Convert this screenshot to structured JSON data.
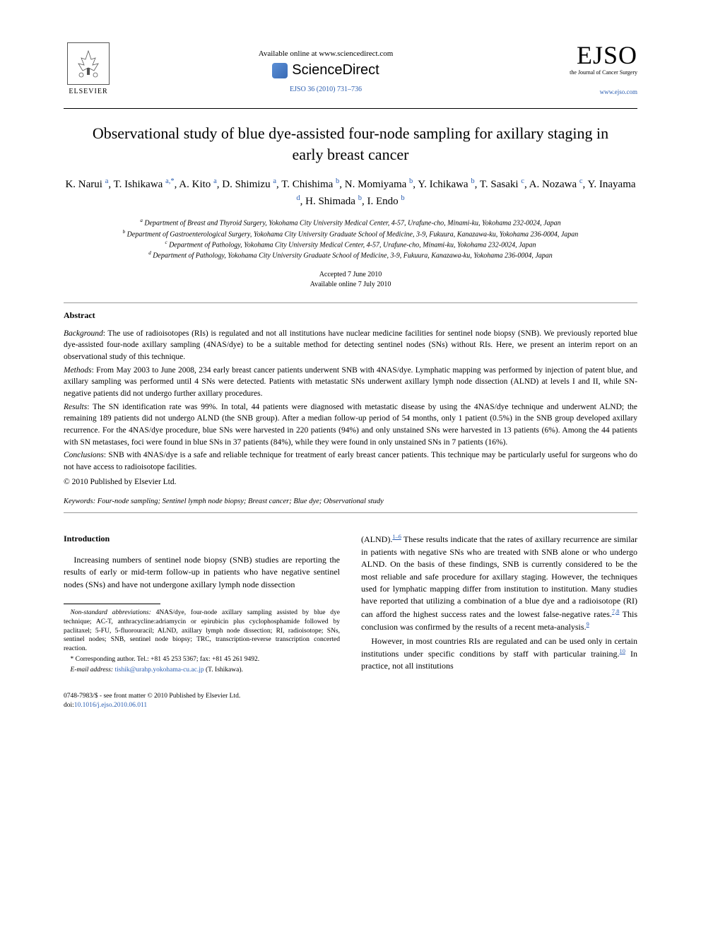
{
  "header": {
    "elsevier_label": "ELSEVIER",
    "available_online": "Available online at www.sciencedirect.com",
    "sciencedirect": "ScienceDirect",
    "citation": "EJSO 36 (2010) 731–736",
    "ejso": "EJSO",
    "ejso_sub": "the Journal of Cancer Surgery",
    "ejso_url": "www.ejso.com"
  },
  "title": "Observational study of blue dye-assisted four-node sampling for axillary staging in early breast cancer",
  "authors_html": "K. Narui <sup>a</sup>, T. Ishikawa <sup>a,*</sup>, A. Kito <sup>a</sup>, D. Shimizu <sup>a</sup>, T. Chishima <sup>b</sup>, N. Momiyama <sup>b</sup>, Y. Ichikawa <sup>b</sup>, T. Sasaki <sup>c</sup>, A. Nozawa <sup>c</sup>, Y. Inayama <sup>d</sup>, H. Shimada <sup>b</sup>, I. Endo <sup>b</sup>",
  "affiliations": {
    "a": "Department of Breast and Thyroid Surgery, Yokohama City University Medical Center, 4-57, Urafune-cho, Minami-ku, Yokohama 232-0024, Japan",
    "b": "Department of Gastroenterological Surgery, Yokohama City University Graduate School of Medicine, 3-9, Fukuura, Kanazawa-ku, Yokohama 236-0004, Japan",
    "c": "Department of Pathology, Yokohama City University Medical Center, 4-57, Urafune-cho, Minami-ku, Yokohama 232-0024, Japan",
    "d": "Department of Pathology, Yokohama City University Graduate School of Medicine, 3-9, Fukuura, Kanazawa-ku, Yokohama 236-0004, Japan"
  },
  "dates": {
    "accepted": "Accepted 7 June 2010",
    "online": "Available online 7 July 2010"
  },
  "abstract": {
    "label": "Abstract",
    "background": "Background: The use of radioisotopes (RIs) is regulated and not all institutions have nuclear medicine facilities for sentinel node biopsy (SNB). We previously reported blue dye-assisted four-node axillary sampling (4NAS/dye) to be a suitable method for detecting sentinel nodes (SNs) without RIs. Here, we present an interim report on an observational study of this technique.",
    "methods": "Methods: From May 2003 to June 2008, 234 early breast cancer patients underwent SNB with 4NAS/dye. Lymphatic mapping was performed by injection of patent blue, and axillary sampling was performed until 4 SNs were detected. Patients with metastatic SNs underwent axillary lymph node dissection (ALND) at levels I and II, while SN-negative patients did not undergo further axillary procedures.",
    "results": "Results: The SN identification rate was 99%. In total, 44 patients were diagnosed with metastatic disease by using the 4NAS/dye technique and underwent ALND; the remaining 189 patients did not undergo ALND (the SNB group). After a median follow-up period of 54 months, only 1 patient (0.5%) in the SNB group developed axillary recurrence. For the 4NAS/dye procedure, blue SNs were harvested in 220 patients (94%) and only unstained SNs were harvested in 13 patients (6%). Among the 44 patients with SN metastases, foci were found in blue SNs in 37 patients (84%), while they were found in only unstained SNs in 7 patients (16%).",
    "conclusions": "Conclusions: SNB with 4NAS/dye is a safe and reliable technique for treatment of early breast cancer patients. This technique may be particularly useful for surgeons who do not have access to radioisotope facilities.",
    "copyright": "© 2010 Published by Elsevier Ltd."
  },
  "keywords": {
    "label": "Keywords:",
    "text": "Four-node sampling; Sentinel lymph node biopsy; Breast cancer; Blue dye; Observational study"
  },
  "intro": {
    "heading": "Introduction",
    "p1": "Increasing numbers of sentinel node biopsy (SNB) studies are reporting the results of early or mid-term follow-up in patients who have negative sentinel nodes (SNs) and have not undergone axillary lymph node dissection",
    "p2a": "(ALND).",
    "p2ref": "1–6",
    "p2b": " These results indicate that the rates of axillary recurrence are similar in patients with negative SNs who are treated with SNB alone or who undergo ALND. On the basis of these findings, SNB is currently considered to be the most reliable and safe procedure for axillary staging. However, the techniques used for lymphatic mapping differ from institution to institution. Many studies have reported that utilizing a combination of a blue dye and a radioisotope (RI) can afford the highest success rates and the lowest false-negative rates.",
    "p2ref2": "7,8",
    "p2c": " This conclusion was confirmed by the results of a recent meta-analysis.",
    "p2ref3": "9",
    "p3a": "However, in most countries RIs are regulated and can be used only in certain institutions under specific conditions by staff with particular training.",
    "p3ref": "10",
    "p3b": " In practice, not all institutions"
  },
  "footnotes": {
    "abbrev": "Non-standard abbreviations: 4NAS/dye, four-node axillary sampling assisted by blue dye technique; AC-T, anthracycline:adriamycin or epirubicin plus cyclophosphamide followed by paclitaxel; 5-FU, 5-fluorouracil; ALND, axillary lymph node dissection; RI, radioisotope; SNs, sentinel nodes; SNB, sentinel node biopsy; TRC, transcription-reverse transcription concerted reaction.",
    "corr": "* Corresponding author. Tel.: +81 45 253 5367; fax: +81 45 261 9492.",
    "email_label": "E-mail address:",
    "email": "tishik@urahp.yokohama-cu.ac.jp",
    "email_who": "(T. Ishikawa)."
  },
  "footer": {
    "issn": "0748-7983/$ - see front matter © 2010 Published by Elsevier Ltd.",
    "doi_label": "doi:",
    "doi": "10.1016/j.ejso.2010.06.011"
  },
  "colors": {
    "link": "#2a5db0",
    "text": "#000000",
    "bg": "#ffffff"
  }
}
